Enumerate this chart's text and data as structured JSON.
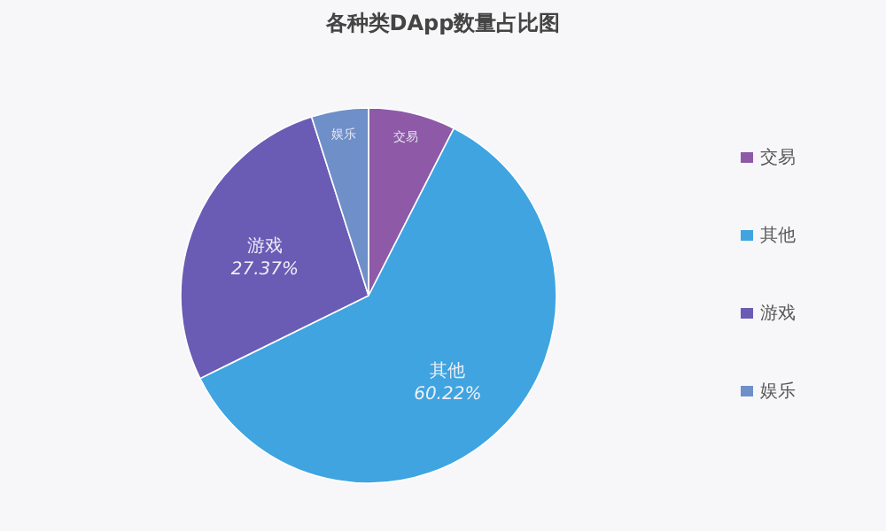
{
  "chart_data": {
    "type": "pie",
    "title": "各种类DApp数量占比图",
    "categories": [
      "交易",
      "其他",
      "游戏",
      "娱乐"
    ],
    "values": [
      7.5,
      60.22,
      27.37,
      4.91
    ],
    "value_labels": [
      null,
      "60.22%",
      "27.37%",
      null
    ],
    "colors": [
      "#8e5aa8",
      "#3fa4e0",
      "#6a5bb5",
      "#6f8fc9"
    ],
    "legend": "right"
  }
}
